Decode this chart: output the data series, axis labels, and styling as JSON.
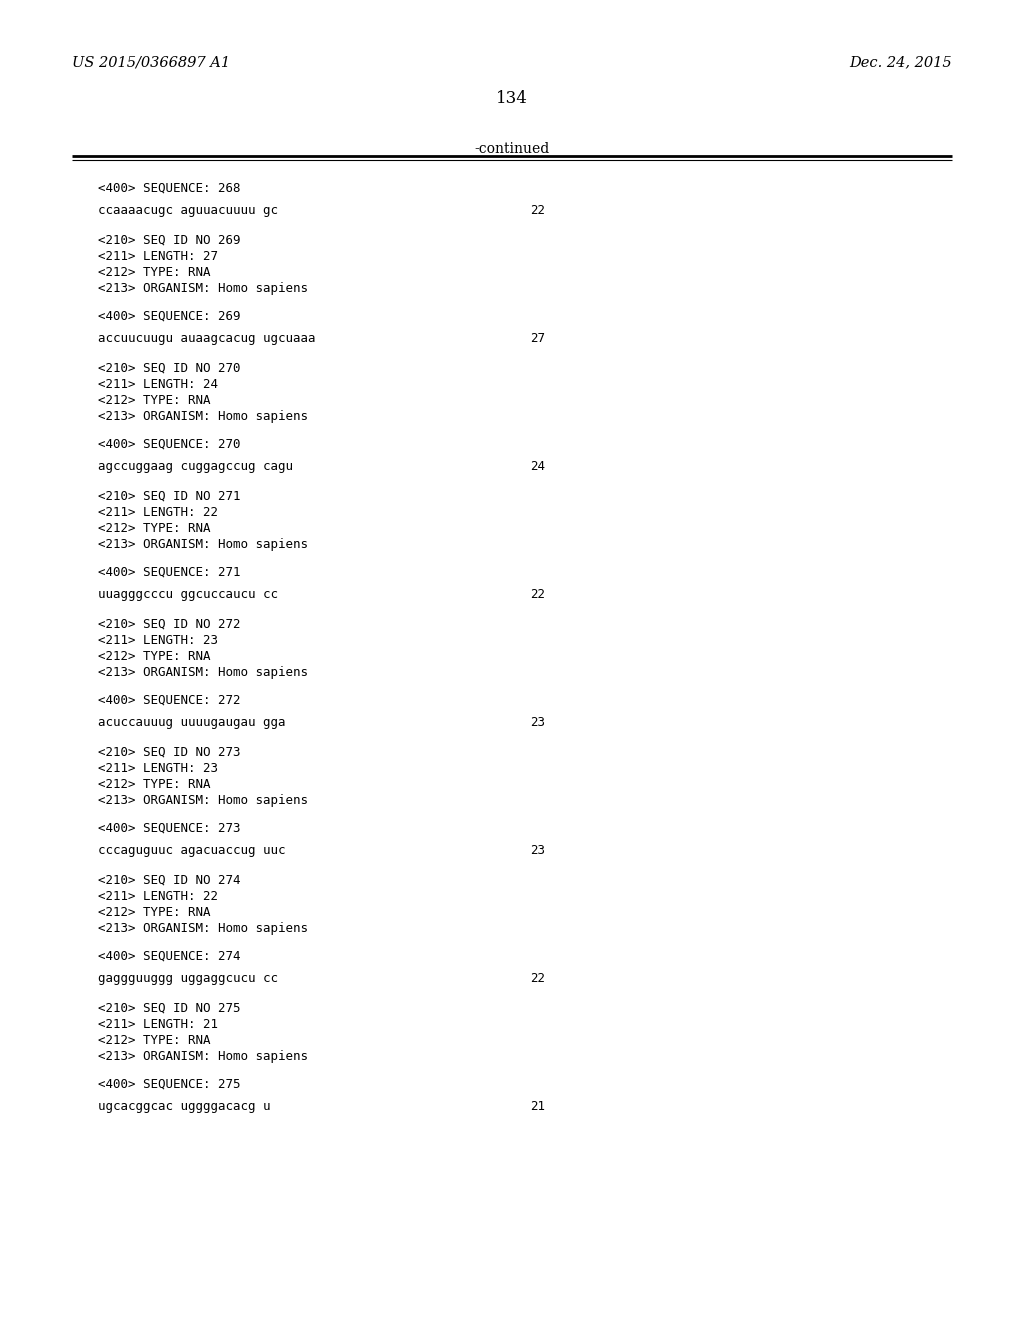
{
  "bg_color": "#ffffff",
  "header_left": "US 2015/0366897 A1",
  "header_right": "Dec. 24, 2015",
  "page_number": "134",
  "continued_text": "-continued",
  "font_color": "#000000",
  "mono_font": "DejaVu Sans Mono",
  "serif_font": "DejaVu Serif",
  "entries": [
    {
      "seq400": "<400> SEQUENCE: 268",
      "sequence": "ccaaaacugc aguuacuuuu gc",
      "seq_number": "22",
      "meta": []
    },
    {
      "seq400": "<400> SEQUENCE: 269",
      "sequence": "accuucuugu auaagcacug ugcuaaa",
      "seq_number": "27",
      "meta": [
        "<210> SEQ ID NO 269",
        "<211> LENGTH: 27",
        "<212> TYPE: RNA",
        "<213> ORGANISM: Homo sapiens"
      ]
    },
    {
      "seq400": "<400> SEQUENCE: 270",
      "sequence": "agccuggaag cuggagccug cagu",
      "seq_number": "24",
      "meta": [
        "<210> SEQ ID NO 270",
        "<211> LENGTH: 24",
        "<212> TYPE: RNA",
        "<213> ORGANISM: Homo sapiens"
      ]
    },
    {
      "seq400": "<400> SEQUENCE: 271",
      "sequence": "uuagggcccu ggcuccaucu cc",
      "seq_number": "22",
      "meta": [
        "<210> SEQ ID NO 271",
        "<211> LENGTH: 22",
        "<212> TYPE: RNA",
        "<213> ORGANISM: Homo sapiens"
      ]
    },
    {
      "seq400": "<400> SEQUENCE: 272",
      "sequence": "acuccauuug uuuugaugau gga",
      "seq_number": "23",
      "meta": [
        "<210> SEQ ID NO 272",
        "<211> LENGTH: 23",
        "<212> TYPE: RNA",
        "<213> ORGANISM: Homo sapiens"
      ]
    },
    {
      "seq400": "<400> SEQUENCE: 273",
      "sequence": "cccaguguuc agacuaccug uuc",
      "seq_number": "23",
      "meta": [
        "<210> SEQ ID NO 273",
        "<211> LENGTH: 23",
        "<212> TYPE: RNA",
        "<213> ORGANISM: Homo sapiens"
      ]
    },
    {
      "seq400": "<400> SEQUENCE: 274",
      "sequence": "gaggguuggg uggaggcucu cc",
      "seq_number": "22",
      "meta": [
        "<210> SEQ ID NO 274",
        "<211> LENGTH: 22",
        "<212> TYPE: RNA",
        "<213> ORGANISM: Homo sapiens"
      ]
    },
    {
      "seq400": "<400> SEQUENCE: 275",
      "sequence": "ugcacggcac uggggacacg u",
      "seq_number": "21",
      "meta": [
        "<210> SEQ ID NO 275",
        "<211> LENGTH: 21",
        "<212> TYPE: RNA",
        "<213> ORGANISM: Homo sapiens"
      ]
    }
  ]
}
